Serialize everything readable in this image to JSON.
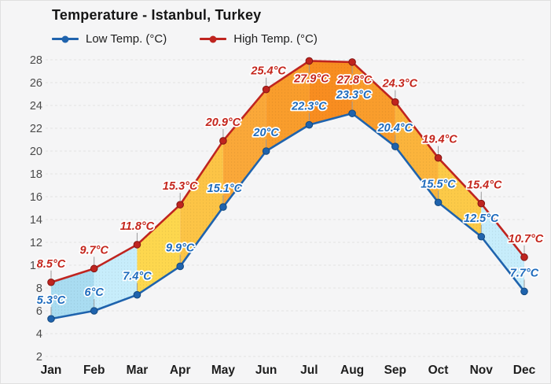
{
  "header": {
    "title": "Temperature - Istanbul, Turkey"
  },
  "legend": {
    "items": [
      {
        "label": "Low Temp. (°C)",
        "color": "#1f63ad"
      },
      {
        "label": "High Temp. (°C)",
        "color": "#bf241f"
      }
    ]
  },
  "chart_data": {
    "type": "line",
    "title": "Temperature - Istanbul, Turkey",
    "categories": [
      "Jan",
      "Feb",
      "Mar",
      "Apr",
      "May",
      "Jun",
      "Jul",
      "Aug",
      "Sep",
      "Oct",
      "Nov",
      "Dec"
    ],
    "series": [
      {
        "name": "Low Temp. (°C)",
        "color": "#1f63ad",
        "point_stroke": "#14497e",
        "label_color": "#1e6bbd",
        "values": [
          5.3,
          6,
          7.4,
          9.9,
          15.1,
          20,
          22.3,
          23.3,
          20.4,
          15.5,
          12.5,
          7.7
        ],
        "labels": [
          "5.3°C",
          "6°C",
          "7.4°C",
          "9.9°C",
          "15.1°C",
          "20°C",
          "22.3°C",
          "23.3°C",
          "20.4°C",
          "15.5°C",
          "12.5°C",
          "7.7°C"
        ]
      },
      {
        "name": "High Temp. (°C)",
        "color": "#bf241f",
        "point_stroke": "#821613",
        "label_color": "#c4261d",
        "values": [
          8.5,
          9.7,
          11.8,
          15.3,
          20.9,
          25.4,
          27.9,
          27.8,
          24.3,
          19.4,
          15.4,
          10.7
        ],
        "labels": [
          "8.5°C",
          "9.7°C",
          "11.8°C",
          "15.3°C",
          "20.9°C",
          "25.4°C",
          "27.9°C",
          "27.8°C",
          "24.3°C",
          "19.4°C",
          "15.4°C",
          "10.7°C"
        ]
      }
    ],
    "ylim": [
      2,
      28
    ],
    "yticks": [
      2,
      4,
      6,
      8,
      10,
      12,
      14,
      16,
      18,
      20,
      22,
      24,
      26,
      28
    ],
    "grid": "horizontal-dashed",
    "legend_position": "top-left",
    "band_colors": [
      "#a9dcf1",
      "#c7edfb",
      "#fdd74e",
      "#fcc446",
      "#faa839",
      "#f99d2c",
      "#f88d20",
      "#f99d2c",
      "#fbb43c",
      "#fcca48",
      "#c7edfb"
    ]
  },
  "colors": {
    "background": "#f5f5f6",
    "gridline": "#e2e2e2",
    "y_tick_text": "#4b4b4b",
    "x_tick_text": "#1d1d1d",
    "connector": "#9b9b9b"
  }
}
